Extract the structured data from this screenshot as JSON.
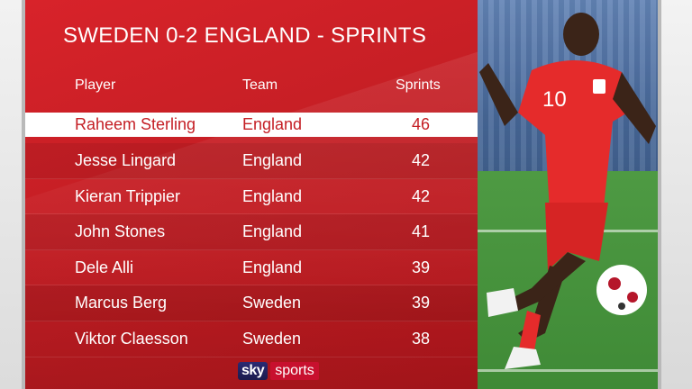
{
  "title": "SWEDEN 0-2 ENGLAND - SPRINTS",
  "columns": {
    "player": "Player",
    "team": "Team",
    "sprints": "Sprints"
  },
  "rows": [
    {
      "player": "Raheem Sterling",
      "team": "England",
      "sprints": "46",
      "highlighted": true
    },
    {
      "player": "Jesse Lingard",
      "team": "England",
      "sprints": "42"
    },
    {
      "player": "Kieran Trippier",
      "team": "England",
      "sprints": "42"
    },
    {
      "player": "John Stones",
      "team": "England",
      "sprints": "41"
    },
    {
      "player": "Dele Alli",
      "team": "England",
      "sprints": "39"
    },
    {
      "player": "Marcus Berg",
      "team": "Sweden",
      "sprints": "39"
    },
    {
      "player": "Viktor Claesson",
      "team": "Sweden",
      "sprints": "38"
    }
  ],
  "logo": {
    "sky": "sky",
    "sports": "sports"
  },
  "photo": {
    "shirt_number": "10"
  },
  "colors": {
    "card_red": "#c41e24",
    "highlight_bg": "#ffffff",
    "highlight_text": "#c41e24",
    "text": "#ffffff"
  }
}
